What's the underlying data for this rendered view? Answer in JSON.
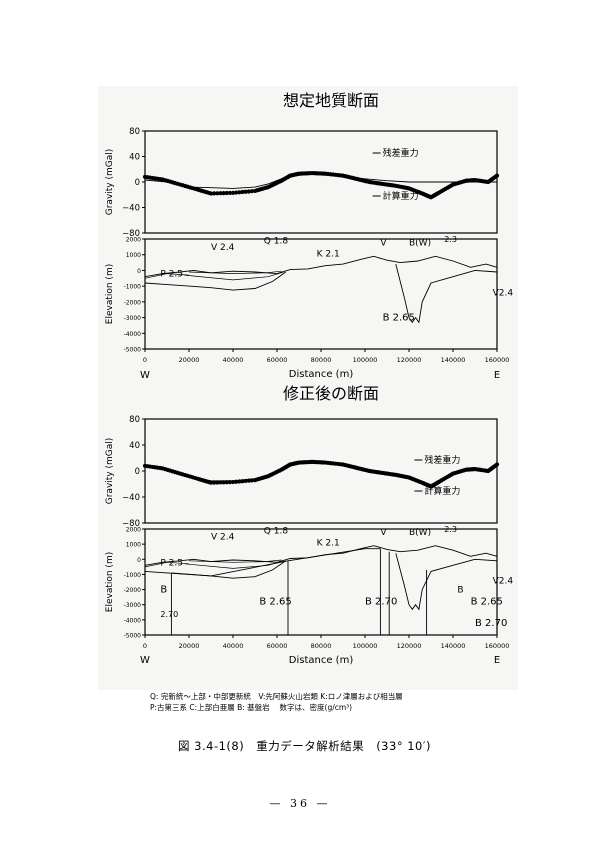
{
  "panels": [
    {
      "title": "想定地質断面",
      "gravity_axis_label": "Gravity (mGal)",
      "gravity_ticks": [
        "80",
        "40",
        "0",
        "−40",
        "−80"
      ],
      "elev_axis_label": "Elevation (m)",
      "elev_ticks": [
        "2000",
        "1000",
        "0",
        "-1000",
        "-2000",
        "-3000",
        "-4000",
        "-5000"
      ],
      "x_ticks": [
        "0",
        "20000",
        "40000",
        "60000",
        "80000",
        "100000",
        "120000",
        "140000",
        "160000"
      ],
      "x_label": "Distance (m)",
      "dir_left": "W",
      "dir_right": "E",
      "label_residual": "残差重力",
      "label_calculated": "計算重力",
      "units": [
        "V 2.4",
        "Q 1.8",
        "K 2.1",
        "V",
        "B(W)",
        "2.3",
        "P 2.5",
        "V2.4",
        "B 2.65"
      ]
    },
    {
      "title": "修正後の断面",
      "gravity_axis_label": "Gravity (mGal)",
      "gravity_ticks": [
        "80",
        "40",
        "0",
        "−40",
        "−80"
      ],
      "elev_axis_label": "Elevation (m)",
      "elev_ticks": [
        "2000",
        "1000",
        "0",
        "-1000",
        "-2000",
        "-3000",
        "-4000",
        "-5000"
      ],
      "x_ticks": [
        "0",
        "20000",
        "40000",
        "60000",
        "80000",
        "100000",
        "120000",
        "140000",
        "160000"
      ],
      "x_label": "Distance (m)",
      "dir_left": "W",
      "dir_right": "E",
      "label_residual": "残差重力",
      "label_calculated": "計算重力",
      "units": [
        "V 2.4",
        "Q 1.8",
        "K 2.1",
        "V",
        "B(W)",
        "2.3",
        "P 2.5",
        "V2.4",
        "B",
        "2.70",
        "B 2.65",
        "B 2.70",
        "B",
        "B 2.70",
        "B 2.65"
      ]
    }
  ],
  "chart_data": [
    {
      "type": "line",
      "title": "想定地質断面",
      "xlabel": "Distance (m)",
      "ylabel": "Gravity (mGal)",
      "xlim": [
        0,
        160000
      ],
      "ylim": [
        -80,
        80
      ],
      "series": [
        {
          "name": "残差重力",
          "x": [
            0,
            8000,
            16000,
            24000,
            30000,
            40000,
            50000,
            56000,
            62000,
            66000,
            70000,
            76000,
            82000,
            90000,
            96000,
            102000,
            108000,
            114000,
            120000,
            126000,
            130000,
            134000,
            140000,
            146000,
            150000,
            156000,
            160000
          ],
          "y": [
            8,
            4,
            -4,
            -12,
            -18,
            -17,
            -14,
            -8,
            2,
            10,
            13,
            14,
            13,
            10,
            5,
            0,
            -3,
            -6,
            -10,
            -18,
            -24,
            -16,
            -4,
            2,
            3,
            0,
            10
          ]
        },
        {
          "name": "計算重力",
          "x": [
            0,
            10000,
            20000,
            30000,
            40000,
            50000,
            56000,
            62000,
            66000,
            72000,
            80000,
            90000,
            100000,
            110000,
            120000,
            130000,
            140000,
            150000,
            160000
          ],
          "y": [
            3,
            0,
            -8,
            -9,
            -10,
            -8,
            -3,
            5,
            11,
            14,
            12,
            9,
            5,
            2,
            0,
            0,
            0,
            0,
            0
          ]
        }
      ]
    },
    {
      "type": "line",
      "title": "修正後の断面",
      "xlabel": "Distance (m)",
      "ylabel": "Gravity (mGal)",
      "xlim": [
        0,
        160000
      ],
      "ylim": [
        -80,
        80
      ],
      "series": [
        {
          "name": "残差重力",
          "x": [
            0,
            8000,
            16000,
            24000,
            30000,
            40000,
            50000,
            56000,
            62000,
            66000,
            70000,
            76000,
            82000,
            90000,
            96000,
            102000,
            108000,
            114000,
            120000,
            126000,
            130000,
            134000,
            140000,
            146000,
            150000,
            156000,
            160000
          ],
          "y": [
            8,
            4,
            -4,
            -12,
            -18,
            -17,
            -14,
            -8,
            2,
            10,
            13,
            14,
            13,
            10,
            5,
            0,
            -3,
            -6,
            -10,
            -18,
            -24,
            -16,
            -4,
            2,
            3,
            0,
            10
          ]
        },
        {
          "name": "計算重力",
          "x": [
            0,
            8000,
            16000,
            24000,
            30000,
            40000,
            50000,
            56000,
            62000,
            66000,
            70000,
            76000,
            82000,
            90000,
            96000,
            102000,
            108000,
            114000,
            120000,
            126000,
            130000,
            134000,
            140000,
            146000,
            150000,
            156000,
            160000
          ],
          "y": [
            7,
            3,
            -5,
            -11,
            -15,
            -15,
            -12,
            -6,
            3,
            10,
            12,
            13,
            12,
            9,
            5,
            1,
            -2,
            -5,
            -9,
            -16,
            -21,
            -15,
            -5,
            1,
            2,
            1,
            8
          ]
        }
      ]
    }
  ],
  "legend_line1": "Q: 完新統〜上部・中部更新統　V:先阿蘇火山岩類 K:ロノ津層および相当層",
  "legend_line2": "P:古第三系 C:上部白亜層 B: 基盤岩　 数字は、密度(g/cm³)",
  "caption": "図 3.4-1(8)　重力データ解析結果　(33° 10′)",
  "page_number": "— 36 —"
}
